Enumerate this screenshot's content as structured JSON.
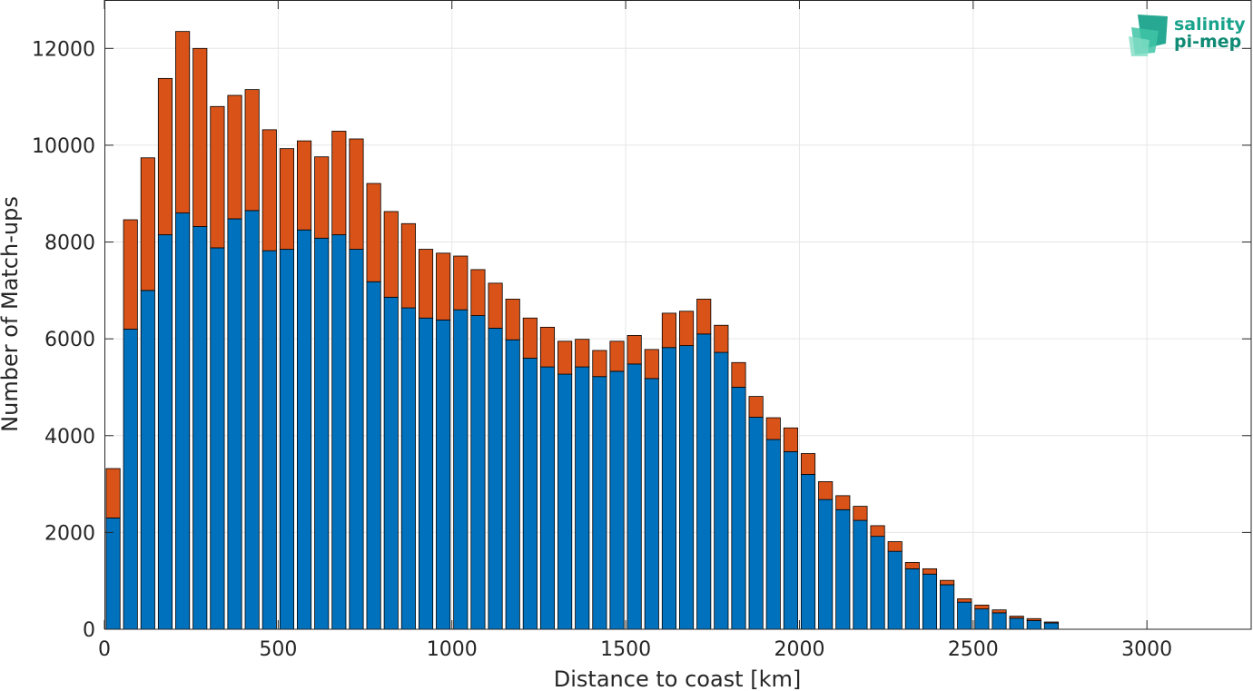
{
  "chart_data": {
    "type": "bar",
    "stacked": true,
    "xlabel": "Distance to coast [km]",
    "ylabel": "Number of Match-ups",
    "xlim": [
      0,
      3300
    ],
    "ylim": [
      0,
      13000
    ],
    "bin_width": 50,
    "x": [
      25,
      75,
      125,
      175,
      225,
      275,
      325,
      375,
      425,
      475,
      525,
      575,
      625,
      675,
      725,
      775,
      825,
      875,
      925,
      975,
      1025,
      1075,
      1125,
      1175,
      1225,
      1275,
      1325,
      1375,
      1425,
      1475,
      1525,
      1575,
      1625,
      1675,
      1725,
      1775,
      1825,
      1875,
      1925,
      1975,
      2025,
      2075,
      2125,
      2175,
      2225,
      2275,
      2325,
      2375,
      2425,
      2475,
      2525,
      2575,
      2625,
      2675,
      2725
    ],
    "xticks": [
      0,
      500,
      1000,
      1500,
      2000,
      2500,
      3000
    ],
    "xtick_labels": [
      "0",
      "500",
      "1000",
      "1500",
      "2000",
      "2500",
      "3000"
    ],
    "yticks": [
      0,
      2000,
      4000,
      6000,
      8000,
      10000,
      12000
    ],
    "ytick_labels": [
      "0",
      "2000",
      "4000",
      "6000",
      "8000",
      "10000",
      "12000"
    ],
    "grid": true,
    "series": [
      {
        "color": "#0072BD",
        "values": [
          2300,
          6200,
          7000,
          8150,
          8600,
          8320,
          7880,
          8480,
          8650,
          7820,
          7850,
          8250,
          8080,
          8150,
          7850,
          7180,
          6860,
          6640,
          6430,
          6390,
          6600,
          6480,
          6220,
          5980,
          5600,
          5420,
          5270,
          5420,
          5220,
          5330,
          5480,
          5180,
          5820,
          5860,
          6100,
          5720,
          5000,
          4380,
          3920,
          3670,
          3200,
          2680,
          2470,
          2250,
          1920,
          1610,
          1250,
          1140,
          920,
          560,
          420,
          340,
          230,
          180,
          130
        ]
      },
      {
        "color": "#D95319",
        "values": [
          1020,
          2260,
          2740,
          3230,
          3750,
          3680,
          2920,
          2550,
          2500,
          2500,
          2080,
          1840,
          1680,
          2140,
          2280,
          2030,
          1770,
          1740,
          1420,
          1380,
          1110,
          950,
          930,
          840,
          830,
          820,
          680,
          570,
          540,
          620,
          590,
          600,
          710,
          710,
          720,
          560,
          510,
          430,
          450,
          490,
          430,
          370,
          290,
          290,
          220,
          200,
          130,
          110,
          90,
          70,
          80,
          60,
          40,
          40,
          20
        ]
      }
    ]
  },
  "logo": {
    "line1": "salinity",
    "line2": "pi-mep"
  }
}
